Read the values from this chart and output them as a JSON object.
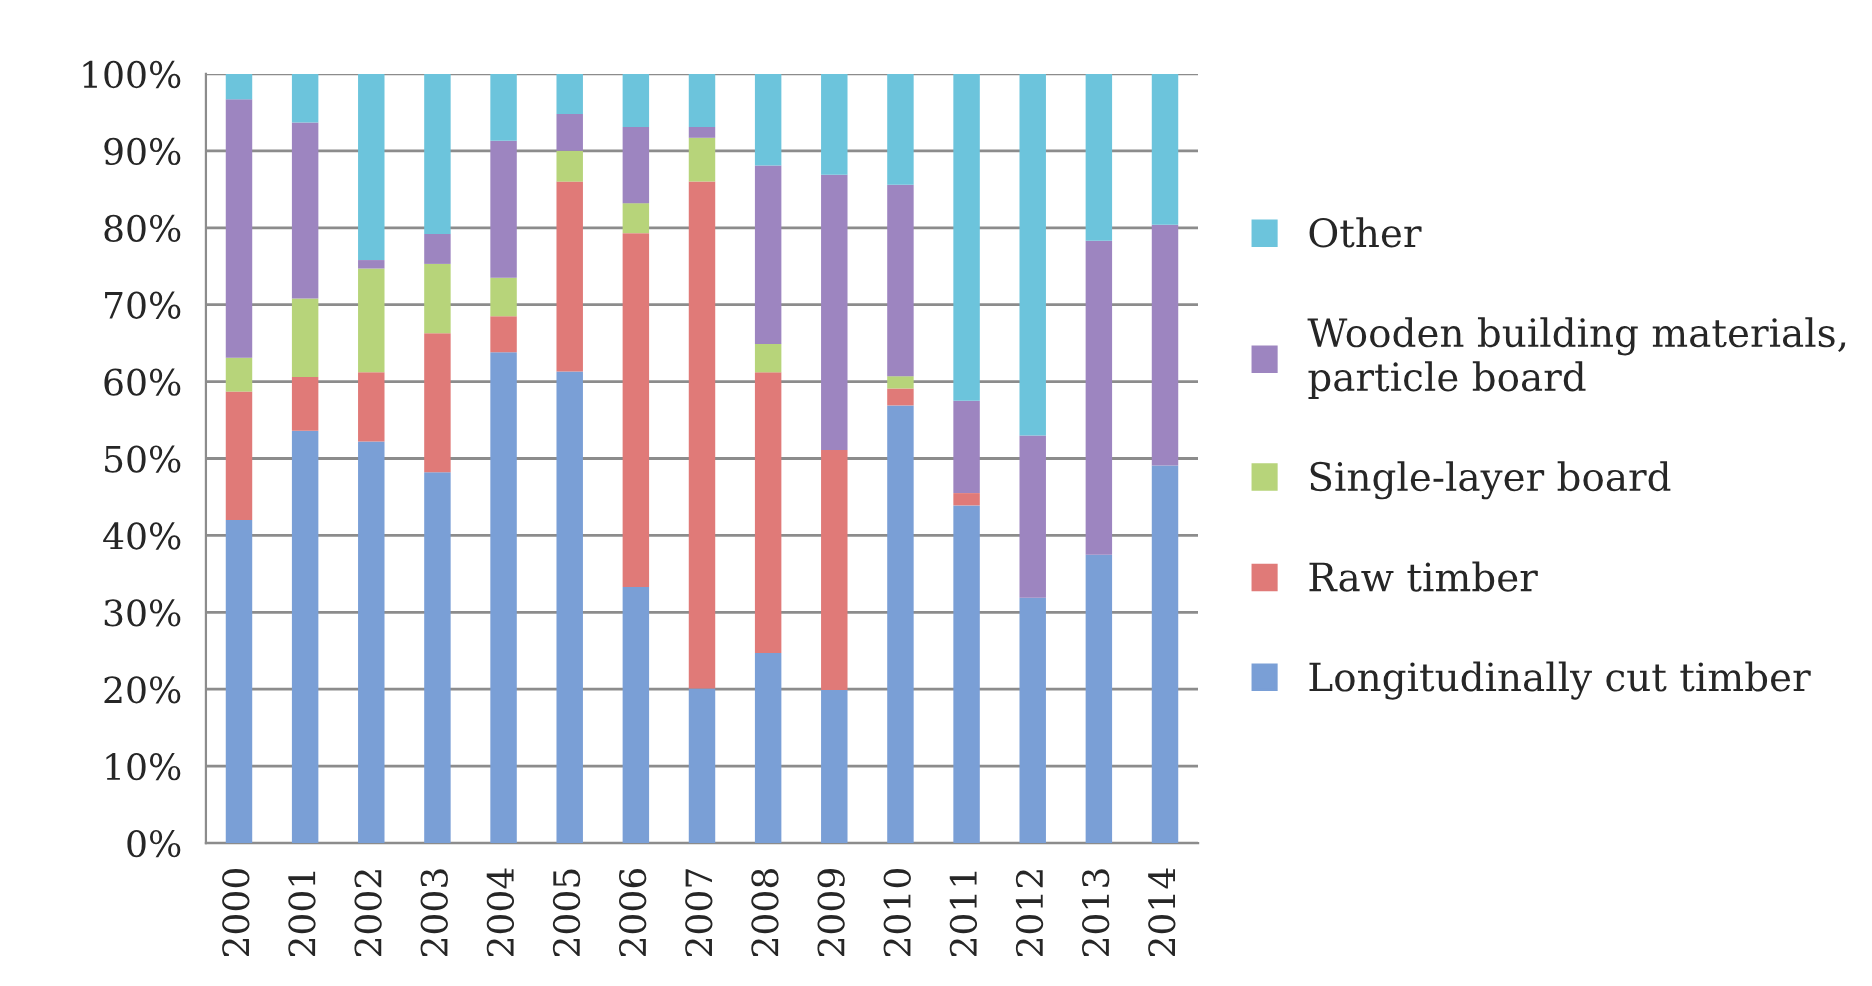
{
  "chart_data": {
    "type": "bar",
    "stacked": true,
    "categories": [
      "2000",
      "2001",
      "2002",
      "2003",
      "2004",
      "2005",
      "2006",
      "2007",
      "2008",
      "2009",
      "2010",
      "2011",
      "2012",
      "2013",
      "2014"
    ],
    "series": [
      {
        "name": "Longitudinally cut timber",
        "color": "#7a9fd6",
        "values": [
          42.0,
          53.6,
          52.2,
          48.2,
          63.8,
          61.3,
          33.3,
          20.1,
          24.7,
          19.9,
          56.9,
          43.9,
          31.9,
          37.5,
          49.1
        ]
      },
      {
        "name": "Raw timber",
        "color": "#e07a78",
        "values": [
          16.7,
          7.0,
          9.0,
          18.1,
          4.7,
          24.7,
          46.0,
          65.9,
          36.5,
          31.2,
          2.2,
          1.6,
          0,
          0,
          0
        ]
      },
      {
        "name": "Single-layer board",
        "color": "#b7d47a",
        "values": [
          4.4,
          10.2,
          13.5,
          9.0,
          5.0,
          4.0,
          3.9,
          5.7,
          3.7,
          0,
          1.6,
          0,
          0,
          0,
          0
        ]
      },
      {
        "name": "Wooden building materials, particle board",
        "color": "#9d85c0",
        "values": [
          33.6,
          22.9,
          1.1,
          3.9,
          17.8,
          4.8,
          9.9,
          1.4,
          23.2,
          35.8,
          24.9,
          12.0,
          21.1,
          40.8,
          31.3
        ]
      },
      {
        "name": "Other",
        "color": "#6cc4dc",
        "values": [
          3.3,
          6.3,
          24.2,
          20.8,
          8.7,
          5.2,
          6.9,
          6.9,
          11.9,
          13.1,
          14.4,
          42.5,
          47.0,
          21.7,
          19.6
        ]
      }
    ],
    "ylim": [
      0,
      100
    ],
    "yticks": [
      {
        "value": 0,
        "label": "0%"
      },
      {
        "value": 10,
        "label": "10%"
      },
      {
        "value": 20,
        "label": "20%"
      },
      {
        "value": 30,
        "label": "30%"
      },
      {
        "value": 40,
        "label": "40%"
      },
      {
        "value": 50,
        "label": "50%"
      },
      {
        "value": 60,
        "label": "60%"
      },
      {
        "value": 70,
        "label": "70%"
      },
      {
        "value": 80,
        "label": "80%"
      },
      {
        "value": 90,
        "label": "90%"
      },
      {
        "value": 100,
        "label": "100%"
      }
    ],
    "grid": "y",
    "legend": "right"
  }
}
